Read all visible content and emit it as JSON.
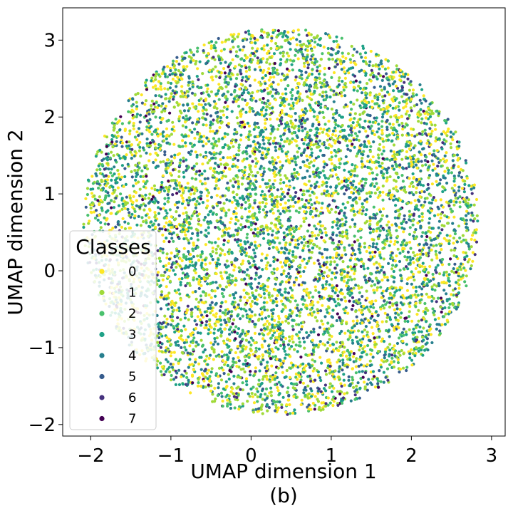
{
  "chart_data": {
    "type": "scatter",
    "title": "",
    "xlabel": "UMAP dimension 1",
    "caption": "(b)",
    "ylabel": "UMAP dimension 2",
    "xlim": [
      -2.35,
      3.17
    ],
    "ylim": [
      -2.15,
      3.42
    ],
    "x_ticks": [
      -2,
      -1,
      0,
      1,
      2,
      3
    ],
    "y_ticks": [
      -2,
      -1,
      0,
      1,
      2,
      3
    ],
    "x_tick_labels": [
      "−2",
      "−1",
      "0",
      "1",
      "2",
      "3"
    ],
    "y_tick_labels": [
      "−2",
      "−1",
      "0",
      "1",
      "2",
      "3"
    ],
    "grid": false,
    "point_cloud": {
      "center": [
        0.37,
        0.64
      ],
      "radius_x": 2.5,
      "radius_y": 2.55,
      "approx_points": 7500
    },
    "legend": {
      "title": "Classes",
      "placement": "lower-left",
      "entries": [
        {
          "label": "0",
          "color": "#fde725"
        },
        {
          "label": "1",
          "color": "#a0da39"
        },
        {
          "label": "2",
          "color": "#4ac16d"
        },
        {
          "label": "3",
          "color": "#1fa187"
        },
        {
          "label": "4",
          "color": "#277f8e"
        },
        {
          "label": "5",
          "color": "#365c8d"
        },
        {
          "label": "6",
          "color": "#46327e"
        },
        {
          "label": "7",
          "color": "#440154"
        }
      ]
    },
    "series_weights": [
      0.22,
      0.22,
      0.14,
      0.16,
      0.14,
      0.06,
      0.04,
      0.02
    ]
  }
}
